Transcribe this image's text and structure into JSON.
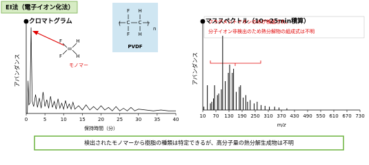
{
  "header": "EI法（電子イオン化法）",
  "pvdf": {
    "atoms": [
      "F",
      "H",
      "C",
      "C",
      "F",
      "H"
    ],
    "subscript": "n",
    "label": "PVDF"
  },
  "monomer_atoms": [
    "F",
    "H",
    "F",
    "H"
  ],
  "conclusion": "検出されたモノマーから樹脂の種類は特定できるが、高分子量の熱分解生成物は不明",
  "chart_data": [
    {
      "type": "line",
      "title": "●クロマトグラム",
      "xlabel": "保持時間（分）",
      "ylabel": "アバンダンス",
      "annotations": [
        "モノマー"
      ],
      "x": [
        0,
        0.3,
        0.5,
        0.7,
        1.0,
        1.3,
        1.6,
        2.0,
        2.5,
        3.0,
        3.5,
        4.0,
        4.5,
        5.0,
        5.5,
        6.0,
        6.5,
        7.0,
        7.5,
        8.0,
        8.5,
        9.0,
        9.5,
        10,
        10.5,
        11,
        11.5,
        12,
        12.5,
        13,
        14,
        15,
        16,
        17,
        18,
        19,
        20,
        21,
        22,
        23,
        24,
        25,
        26,
        27,
        28,
        29,
        30,
        32,
        34,
        36,
        38,
        40
      ],
      "series": [
        {
          "color": "#000000",
          "values": [
            0,
            0,
            38,
            10,
            12,
            100,
            14,
            8,
            22,
            7,
            18,
            6,
            25,
            8,
            16,
            6,
            20,
            7,
            14,
            5,
            17,
            6,
            12,
            5,
            15,
            6,
            11,
            5,
            13,
            5,
            9,
            4,
            10,
            4,
            8,
            4,
            9,
            4,
            7,
            3,
            8,
            3,
            6,
            3,
            7,
            3,
            5,
            4,
            3,
            4,
            3,
            3
          ]
        }
      ],
      "xlim": [
        0,
        40
      ],
      "ylim": [
        0,
        100
      ],
      "xticks": [
        0,
        5,
        10,
        15,
        20,
        25,
        30,
        35,
        40
      ]
    },
    {
      "type": "bar",
      "title": "●マススペクトル（10～25min積算）",
      "xlabel": "m/z",
      "ylabel": "アバンダンス",
      "annotations": [
        "フラグメントイオンのみが検出され、",
        "分子イオン非検出のため熱分解物の組成式は不明"
      ],
      "x": [
        15,
        31,
        45,
        51,
        59,
        64,
        77,
        83,
        95,
        101,
        113,
        127,
        133,
        145,
        151,
        163,
        177,
        183,
        195,
        207,
        215,
        227,
        245,
        259,
        277,
        295,
        315,
        339,
        359,
        395
      ],
      "values": [
        4,
        30,
        8,
        10,
        14,
        30,
        18,
        20,
        25,
        90,
        35,
        45,
        55,
        45,
        50,
        22,
        28,
        30,
        15,
        18,
        10,
        12,
        8,
        10,
        6,
        5,
        4,
        4,
        3,
        2
      ],
      "color": "#000000",
      "xlim": [
        10,
        730
      ],
      "ylim": [
        0,
        100
      ],
      "xticks": [
        10,
        70,
        130,
        190,
        250,
        310,
        370,
        430,
        490,
        550,
        610,
        670,
        730
      ]
    }
  ]
}
